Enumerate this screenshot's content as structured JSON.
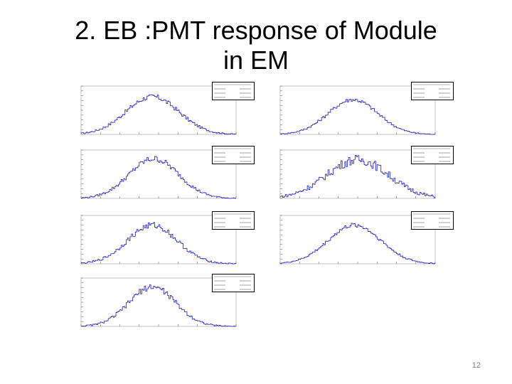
{
  "slide": {
    "title_line1": "2. EB :PMT response of Module",
    "title_line2": "in EM",
    "page_number": "12"
  },
  "colors": {
    "histogram": "#1f1fbf",
    "axis": "#000000"
  },
  "chart_data": [
    {
      "type": "line",
      "title": "",
      "xlabel": "",
      "ylabel": "",
      "center": 0.46,
      "width": 0.17,
      "peak": 0.78,
      "noise": 0.12
    },
    {
      "type": "line",
      "title": "",
      "xlabel": "",
      "ylabel": "",
      "center": 0.47,
      "width": 0.16,
      "peak": 0.72,
      "noise": 0.1
    },
    {
      "type": "line",
      "title": "",
      "xlabel": "",
      "ylabel": "",
      "center": 0.47,
      "width": 0.16,
      "peak": 0.82,
      "noise": 0.14
    },
    {
      "type": "line",
      "title": "",
      "xlabel": "",
      "ylabel": "",
      "center": 0.5,
      "width": 0.2,
      "peak": 0.8,
      "noise": 0.22
    },
    {
      "type": "line",
      "title": "",
      "xlabel": "",
      "ylabel": "",
      "center": 0.46,
      "width": 0.16,
      "peak": 0.8,
      "noise": 0.14
    },
    {
      "type": "line",
      "title": "",
      "xlabel": "",
      "ylabel": "",
      "center": 0.48,
      "width": 0.17,
      "peak": 0.8,
      "noise": 0.1
    },
    {
      "type": "line",
      "title": "",
      "xlabel": "",
      "ylabel": "",
      "center": 0.46,
      "width": 0.15,
      "peak": 0.82,
      "noise": 0.14
    }
  ]
}
